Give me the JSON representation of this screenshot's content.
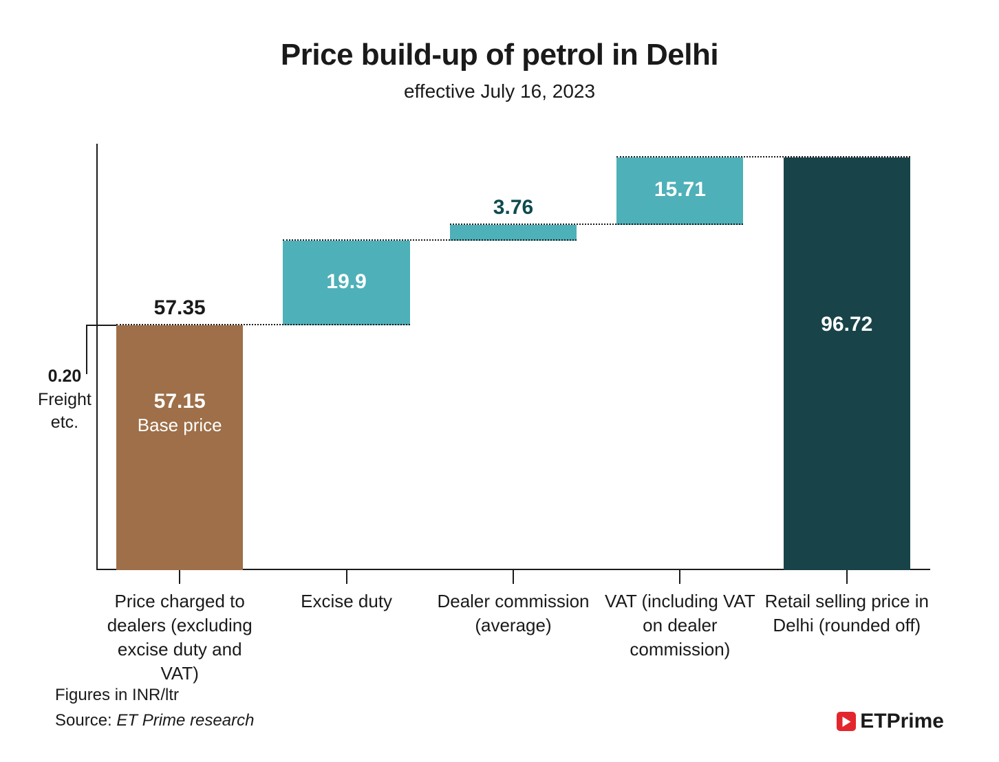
{
  "title": "Price build-up of petrol in Delhi",
  "subtitle": "effective July 16, 2023",
  "chart": {
    "type": "waterfall",
    "ymax": 100,
    "axis_color": "#1a1a1a",
    "connector_color": "#1a1a1a",
    "title_fontsize": 44,
    "subtitle_fontsize": 28,
    "value_fontsize": 30,
    "inside_value_fontsize": 30,
    "inside_sub_fontsize": 26,
    "xlabel_fontsize": 26,
    "annot_fontsize": 25,
    "columns": [
      {
        "key": "dealers",
        "label": "Price charged to dealers (excluding excise duty and VAT)",
        "start": 0,
        "end": 57.35,
        "value_display": "57.35",
        "value_color": "#1a1a1a",
        "value_pos": "above",
        "segments": [
          {
            "from": 0,
            "to": 57.15,
            "color": "#9e6f48",
            "inside_value": "57.15",
            "inside_sub": "Base price"
          },
          {
            "from": 57.15,
            "to": 57.35,
            "color": "#9e6f48"
          }
        ],
        "freight_annotation": {
          "value": "0.20",
          "sub": "Freight etc.",
          "at": 57.25
        }
      },
      {
        "key": "excise",
        "label": "Excise duty",
        "start": 57.35,
        "end": 77.25,
        "value_display": "19.9",
        "value_color": "#ffffff",
        "value_pos": "inside",
        "segments": [
          {
            "from": 57.35,
            "to": 77.25,
            "color": "#4eb0b8"
          }
        ]
      },
      {
        "key": "dealer_comm",
        "label": "Dealer commission (average)",
        "start": 77.25,
        "end": 81.01,
        "value_display": "3.76",
        "value_color": "#0e4b4f",
        "value_pos": "above",
        "segments": [
          {
            "from": 77.25,
            "to": 81.01,
            "color": "#4eb0b8"
          }
        ]
      },
      {
        "key": "vat",
        "label": "VAT (including VAT on dealer commission)",
        "start": 81.01,
        "end": 96.72,
        "value_display": "15.71",
        "value_color": "#ffffff",
        "value_pos": "inside",
        "segments": [
          {
            "from": 81.01,
            "to": 96.72,
            "color": "#4eb0b8"
          }
        ]
      },
      {
        "key": "retail",
        "label": "Retail selling price in Delhi (rounded off)",
        "start": 0,
        "end": 96.72,
        "value_display": "96.72",
        "value_color": "#ffffff",
        "value_pos": "inside",
        "segments": [
          {
            "from": 0,
            "to": 96.72,
            "color": "#184449"
          }
        ]
      }
    ]
  },
  "footer": {
    "figures": "Figures in INR/ltr",
    "source_prefix": "Source: ",
    "source_name": "ET Prime research",
    "fontsize": 24
  },
  "brand": {
    "text": "ETPrime",
    "icon_bg": "#e3262d",
    "text_color": "#1a1a1a",
    "fontsize": 30
  }
}
